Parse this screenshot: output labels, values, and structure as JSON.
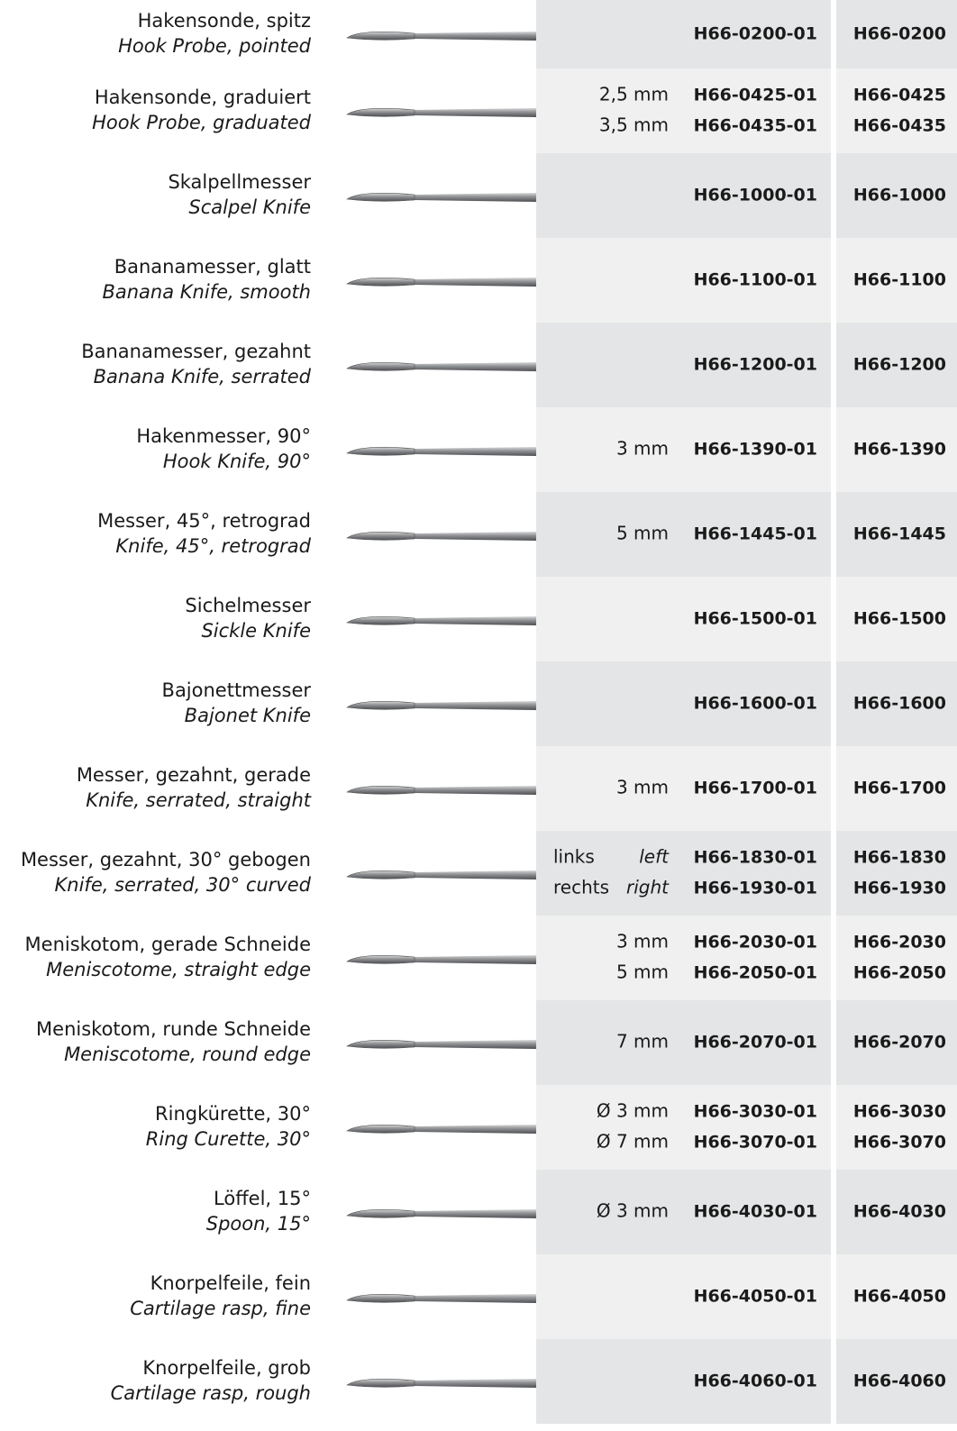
{
  "catalog": {
    "rows": [
      {
        "de": "Hakensonde, spitz",
        "en": "Hook Probe, pointed",
        "variants": [
          {
            "article": "H66-0200-01",
            "code": "H66-0200"
          }
        ]
      },
      {
        "de": "Hakensonde, graduiert",
        "en": "Hook Probe, graduated",
        "variants": [
          {
            "size": "2,5 mm",
            "article": "H66-0425-01",
            "code": "H66-0425"
          },
          {
            "size": "3,5 mm",
            "article": "H66-0435-01",
            "code": "H66-0435"
          }
        ]
      },
      {
        "de": "Skalpellmesser",
        "en": "Scalpel Knife",
        "variants": [
          {
            "article": "H66-1000-01",
            "code": "H66-1000"
          }
        ]
      },
      {
        "de": "Bananamesser, glatt",
        "en": "Banana Knife, smooth",
        "variants": [
          {
            "article": "H66-1100-01",
            "code": "H66-1100"
          }
        ]
      },
      {
        "de": "Bananamesser, gezahnt",
        "en": "Banana Knife, serrated",
        "variants": [
          {
            "article": "H66-1200-01",
            "code": "H66-1200"
          }
        ]
      },
      {
        "de": "Hakenmesser, 90°",
        "en": "Hook Knife, 90°",
        "variants": [
          {
            "size": "3 mm",
            "article": "H66-1390-01",
            "code": "H66-1390"
          }
        ]
      },
      {
        "de": "Messer, 45°, retrograd",
        "en": "Knife, 45°, retrograd",
        "variants": [
          {
            "size": "5 mm",
            "article": "H66-1445-01",
            "code": "H66-1445"
          }
        ]
      },
      {
        "de": "Sichelmesser",
        "en": "Sickle Knife",
        "variants": [
          {
            "article": "H66-1500-01",
            "code": "H66-1500"
          }
        ]
      },
      {
        "de": "Bajonettmesser",
        "en": "Bajonet Knife",
        "variants": [
          {
            "article": "H66-1600-01",
            "code": "H66-1600"
          }
        ]
      },
      {
        "de": "Messer, gezahnt, gerade",
        "en": "Knife, serrated, straight",
        "variants": [
          {
            "size": "3 mm",
            "article": "H66-1700-01",
            "code": "H66-1700"
          }
        ]
      },
      {
        "de": "Messer, gezahnt, 30° gebogen",
        "en": "Knife, serrated, 30° curved",
        "variants": [
          {
            "side": "links",
            "side_en": "left",
            "article": "H66-1830-01",
            "code": "H66-1830"
          },
          {
            "side": "rechts",
            "side_en": "right",
            "article": "H66-1930-01",
            "code": "H66-1930"
          }
        ]
      },
      {
        "de": "Meniskotom, gerade Schneide",
        "en": "Meniscotome, straight edge",
        "variants": [
          {
            "size": "3 mm",
            "article": "H66-2030-01",
            "code": "H66-2030"
          },
          {
            "size": "5 mm",
            "article": "H66-2050-01",
            "code": "H66-2050"
          }
        ]
      },
      {
        "de": "Meniskotom, runde Schneide",
        "en": "Meniscotome, round edge",
        "variants": [
          {
            "size": "7 mm",
            "article": "H66-2070-01",
            "code": "H66-2070"
          }
        ]
      },
      {
        "de": "Ringkürette, 30°",
        "en": "Ring Curette, 30°",
        "variants": [
          {
            "size": "Ø 3 mm",
            "article": "H66-3030-01",
            "code": "H66-3030"
          },
          {
            "size": "Ø 7 mm",
            "article": "H66-3070-01",
            "code": "H66-3070"
          }
        ]
      },
      {
        "de": "Löffel, 15°",
        "en": "Spoon, 15°",
        "variants": [
          {
            "size": "Ø 3 mm",
            "article": "H66-4030-01",
            "code": "H66-4030"
          }
        ]
      },
      {
        "de": "Knorpelfeile, fein",
        "en": "Cartilage rasp, fine",
        "variants": [
          {
            "article": "H66-4050-01",
            "code": "H66-4050"
          }
        ]
      },
      {
        "de": "Knorpelfeile, grob",
        "en": "Cartilage rasp, rough",
        "variants": [
          {
            "article": "H66-4060-01",
            "code": "H66-4060"
          }
        ]
      }
    ]
  }
}
